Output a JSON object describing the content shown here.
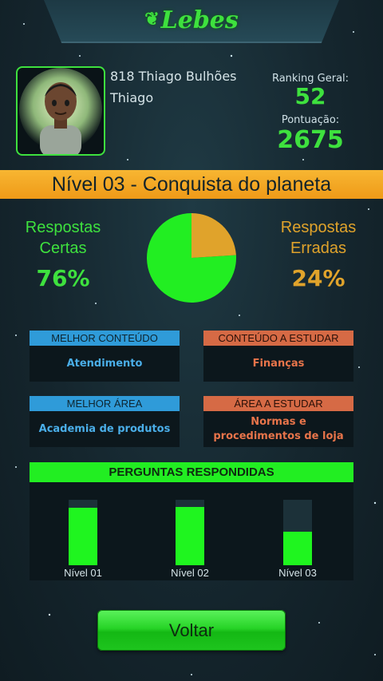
{
  "brand": {
    "logo_text": "Lebes",
    "leaf_icon": "leaf-icon"
  },
  "user": {
    "full_name": "818 Thiago Bulhões",
    "first_name": "Thiago"
  },
  "stats": {
    "ranking_label": "Ranking Geral:",
    "ranking_value": "52",
    "points_label": "Pontuação:",
    "points_value": "2675"
  },
  "level": {
    "title": "Nível 03 - Conquista do planeta"
  },
  "answers": {
    "right_label_line1": "Respostas",
    "right_label_line2": "Certas",
    "right_percent": "76%",
    "wrong_label_line1": "Respostas",
    "wrong_label_line2": "Erradas",
    "wrong_percent": "24%"
  },
  "cards": {
    "best_content": {
      "title": "MELHOR CONTEÚDO",
      "value": "Atendimento"
    },
    "content_to_study": {
      "title": "CONTEÚDO A ESTUDAR",
      "value": "Finanças"
    },
    "best_area": {
      "title": "MELHOR ÁREA",
      "value": "Academia de produtos"
    },
    "area_to_study": {
      "title": "ÁREA A ESTUDAR",
      "value": "Normas e procedimentos de loja"
    }
  },
  "questions": {
    "title": "PERGUNTAS RESPONDIDAS"
  },
  "chart_data": [
    {
      "type": "pie",
      "labels": [
        "Respostas Certas",
        "Respostas Erradas"
      ],
      "values": [
        76,
        24
      ],
      "colors": [
        "#22ee22",
        "#e0a32b"
      ]
    },
    {
      "type": "bar",
      "title": "PERGUNTAS RESPONDIDAS",
      "categories": [
        "Nível 01",
        "Nível 02",
        "Nível 03"
      ],
      "values": [
        0.88,
        0.89,
        0.51
      ],
      "ylim": [
        0,
        1
      ],
      "colors": {
        "fill": "#1ff51f",
        "track": "#1c3139"
      }
    }
  ],
  "footer": {
    "back_label": "Voltar"
  },
  "colors": {
    "accent_green": "#3ee13e",
    "accent_orange": "#e0a32b",
    "blue_header": "#2f9bd9",
    "orange_header": "#d66a45",
    "level_bar": "#f7b632"
  }
}
